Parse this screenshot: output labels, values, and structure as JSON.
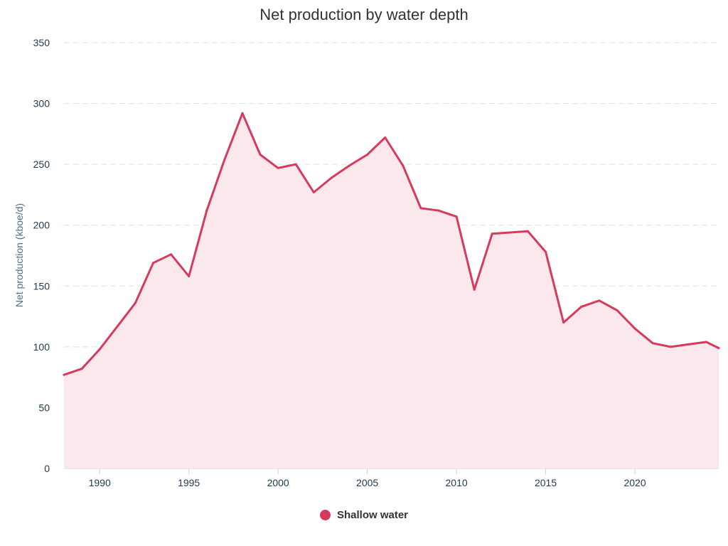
{
  "chart_data": {
    "type": "area",
    "title": "Net production by water depth",
    "ylabel": "Net production (kboe/d)",
    "xlabel": "",
    "xlim": [
      1988,
      2024.7
    ],
    "ylim": [
      0,
      350
    ],
    "yticks": [
      0,
      50,
      100,
      150,
      200,
      250,
      300,
      350
    ],
    "xticks": [
      1990,
      1995,
      2000,
      2005,
      2010,
      2015,
      2020
    ],
    "grid": "horizontal dashed",
    "legend_position": "bottom-center",
    "series": [
      {
        "name": "Shallow water",
        "color": "#d63a5c",
        "fill_color": "#fae8ec",
        "x": [
          1988,
          1989,
          1990,
          1991,
          1992,
          1993,
          1994,
          1995,
          1996,
          1997,
          1998,
          1999,
          2000,
          2001,
          2002,
          2003,
          2004,
          2005,
          2006,
          2007,
          2008,
          2009,
          2010,
          2011,
          2012,
          2013,
          2014,
          2015,
          2016,
          2017,
          2018,
          2019,
          2020,
          2021,
          2022,
          2023,
          2024,
          2024.7
        ],
        "values": [
          77,
          82,
          98,
          117,
          136,
          169,
          176,
          158,
          212,
          254,
          292,
          258,
          247,
          250,
          227,
          239,
          249,
          258,
          272,
          249,
          214,
          212,
          207,
          147,
          193,
          194,
          195,
          178,
          120,
          133,
          138,
          130,
          115,
          103,
          100,
          102,
          104,
          99
        ]
      }
    ]
  }
}
